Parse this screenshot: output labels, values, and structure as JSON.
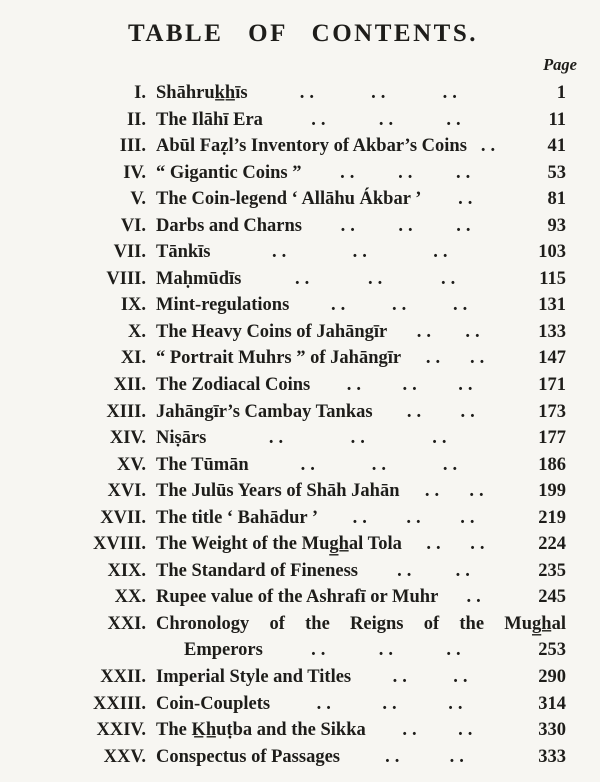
{
  "page": {
    "title": "TABLE  OF  CONTENTS.",
    "page_column_label": "Page",
    "dot_group": "..",
    "paper_color": "#f7f6f2",
    "ink_color": "#1e1d1a"
  },
  "toc": {
    "entries": [
      {
        "numeral": "I.",
        "title": "Shāhruk̲h̲īs",
        "dots": 3,
        "page": "1"
      },
      {
        "numeral": "II.",
        "title": "The Ilāhī Era",
        "dots": 3,
        "page": "11"
      },
      {
        "numeral": "III.",
        "title": "Abūl Faẓl’s Inventory of Akbar’s Coins",
        "dots": 1,
        "page": "41"
      },
      {
        "numeral": "IV.",
        "title": "“ Gigantic Coins ”",
        "dots": 3,
        "page": "53"
      },
      {
        "numeral": "V.",
        "title": "The Coin-legend ‘ Allāhu Ákbar ’",
        "dots": 1,
        "page": "81"
      },
      {
        "numeral": "VI.",
        "title": "Darbs and Charns",
        "dots": 3,
        "page": "93"
      },
      {
        "numeral": "VII.",
        "title": "Tānkīs",
        "dots": 3,
        "page": "103"
      },
      {
        "numeral": "VIII.",
        "title": "Maḥmūdīs",
        "dots": 3,
        "page": "115"
      },
      {
        "numeral": "IX.",
        "title": "Mint-regulations",
        "dots": 3,
        "page": "131"
      },
      {
        "numeral": "X.",
        "title": "The Heavy Coins of Jahāngīr",
        "dots": 2,
        "page": "133"
      },
      {
        "numeral": "XI.",
        "title": "“ Portrait Muhrs ” of Jahāngīr",
        "dots": 2,
        "page": "147"
      },
      {
        "numeral": "XII.",
        "title": "The Zodiacal Coins",
        "dots": 3,
        "page": "171"
      },
      {
        "numeral": "XIII.",
        "title": "Jahāngīr’s Cambay Tankas",
        "dots": 2,
        "page": "173"
      },
      {
        "numeral": "XIV.",
        "title": "Niṣārs",
        "dots": 3,
        "page": "177"
      },
      {
        "numeral": "XV.",
        "title": "The Tūmān",
        "dots": 3,
        "page": "186"
      },
      {
        "numeral": "XVI.",
        "title": "The Julūs Years of Shāh Jahān",
        "dots": 2,
        "page": "199"
      },
      {
        "numeral": "XVII.",
        "title": "The title ‘ Bahādur ’",
        "dots": 3,
        "page": "219"
      },
      {
        "numeral": "XVIII.",
        "title": "The Weight of the Mug̲h̲al Tola",
        "dots": 2,
        "page": "224"
      },
      {
        "numeral": "XIX.",
        "title": "The Standard of Fineness",
        "dots": 2,
        "page": "235"
      },
      {
        "numeral": "XX.",
        "title": "Rupee value of the Ashrafī or Muhr",
        "dots": 1,
        "page": "245"
      },
      {
        "numeral": "XXI.",
        "title": "Chronology of the Reigns of the Mug̲h̲al",
        "wrap": true,
        "title_line2": "Emperors",
        "dots": 3,
        "page": "253"
      },
      {
        "numeral": "XXII.",
        "title": "Imperial Style and Titles",
        "dots": 2,
        "page": "290"
      },
      {
        "numeral": "XXIII.",
        "title": "Coin-Couplets",
        "dots": 3,
        "page": "314"
      },
      {
        "numeral": "XXIV.",
        "title": "The K̲h̲uṭba and the Sikka",
        "dots": 2,
        "page": "330"
      },
      {
        "numeral": "XXV.",
        "title": "Conspectus of Passages",
        "dots": 2,
        "page": "333"
      }
    ]
  }
}
